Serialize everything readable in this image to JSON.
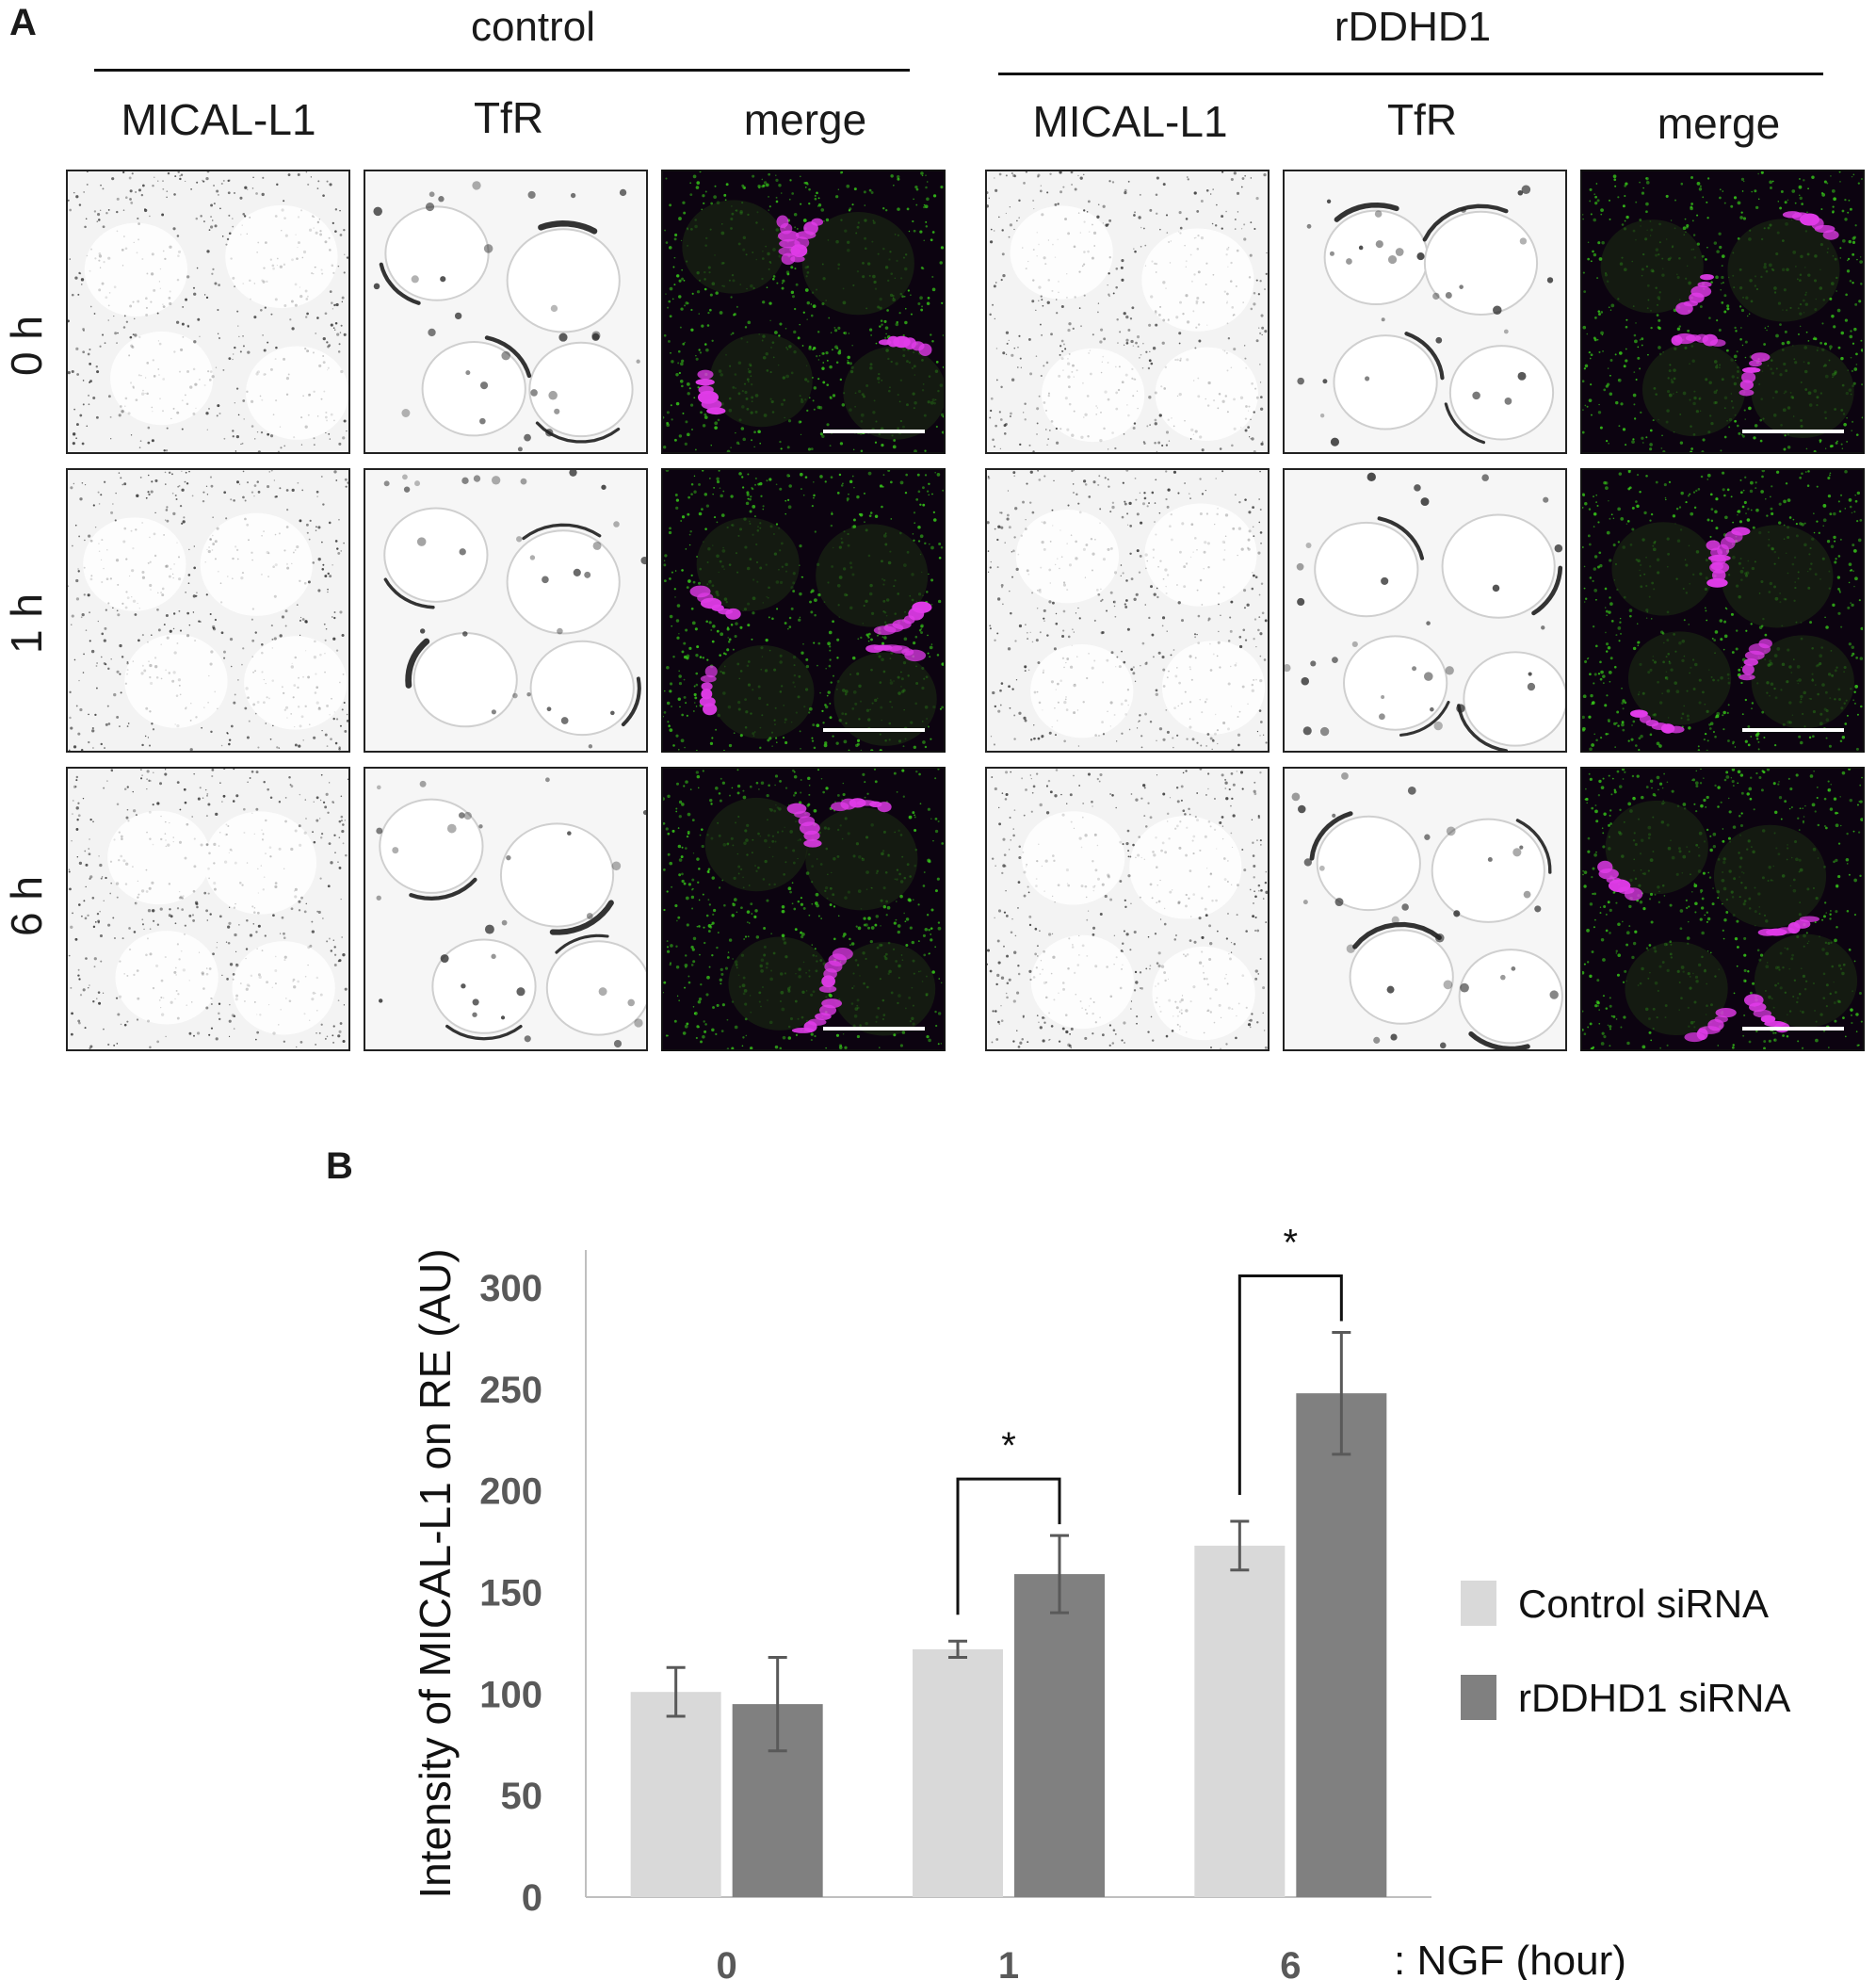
{
  "panel_a": {
    "letter": "A",
    "groups": [
      {
        "label": "control",
        "columns": [
          "MICAL-L1",
          "TfR",
          "merge"
        ]
      },
      {
        "label": "rDDHD1",
        "columns": [
          "MICAL-L1",
          "TfR",
          "merge"
        ]
      }
    ],
    "rows": [
      "0 h",
      "1 h",
      "6 h"
    ],
    "colors": {
      "green": "#39d11a",
      "magenta": "#e03be8",
      "mono_signal": "#111111"
    }
  },
  "panel_b": {
    "letter": "B",
    "legend": [
      "Control siRNA",
      "rDDHD1 siRNA"
    ],
    "x_suffix": ": NGF (hour)",
    "significance": [
      "*",
      "*"
    ]
  },
  "chart_data": {
    "type": "bar",
    "categories": [
      "0",
      "1",
      "6"
    ],
    "series": [
      {
        "name": "Control siRNA",
        "values": [
          101,
          122,
          173
        ],
        "errors": [
          12,
          4,
          12
        ],
        "color": "#d9d9d9"
      },
      {
        "name": "rDDHD1 siRNA",
        "values": [
          95,
          159,
          248
        ],
        "errors": [
          23,
          19,
          30
        ],
        "color": "#808080"
      }
    ],
    "ylabel": "Intensity of MICAL-L1 on RE  (AU)",
    "xlabel": ": NGF (hour)",
    "yticks": [
      0,
      50,
      100,
      150,
      200,
      250,
      300
    ],
    "ylim": [
      0,
      300
    ],
    "grid": false,
    "legend_position": "right",
    "significance": [
      {
        "category": "1",
        "label": "*"
      },
      {
        "category": "6",
        "label": "*"
      }
    ]
  }
}
